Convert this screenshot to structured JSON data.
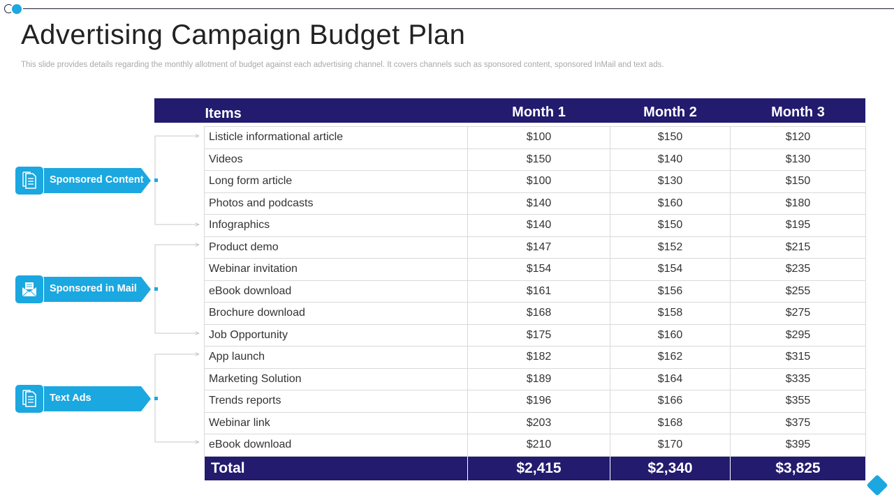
{
  "title": "Advertising Campaign Budget Plan",
  "subtitle": "This slide provides details regarding the monthly allotment of budget against each advertising channel. It covers channels such as sponsored content, sponsored InMail and text ads.",
  "columns": [
    "Items",
    "Month 1",
    "Month 2",
    "Month 3"
  ],
  "rows": [
    {
      "item": "Listicle informational article",
      "m1": "$100",
      "m2": "$150",
      "m3": "$120"
    },
    {
      "item": "Videos",
      "m1": "$150",
      "m2": "$140",
      "m3": "$130"
    },
    {
      "item": "Long form article",
      "m1": "$100",
      "m2": "$130",
      "m3": "$150"
    },
    {
      "item": "Photos and podcasts",
      "m1": "$140",
      "m2": "$160",
      "m3": "$180"
    },
    {
      "item": "Infographics",
      "m1": "$140",
      "m2": "$150",
      "m3": "$195"
    },
    {
      "item": "Product demo",
      "m1": "$147",
      "m2": "$152",
      "m3": "$215"
    },
    {
      "item": "Webinar invitation",
      "m1": "$154",
      "m2": "$154",
      "m3": "$235"
    },
    {
      "item": "eBook download",
      "m1": "$161",
      "m2": "$156",
      "m3": "$255"
    },
    {
      "item": "Brochure download",
      "m1": "$168",
      "m2": "$158",
      "m3": "$275"
    },
    {
      "item": "Job Opportunity",
      "m1": "$175",
      "m2": "$160",
      "m3": "$295"
    },
    {
      "item": "App launch",
      "m1": "$182",
      "m2": "$162",
      "m3": "$315"
    },
    {
      "item": "Marketing Solution",
      "m1": "$189",
      "m2": "$164",
      "m3": "$335"
    },
    {
      "item": "Trends reports",
      "m1": "$196",
      "m2": "$166",
      "m3": "$355"
    },
    {
      "item": "Webinar link",
      "m1": "$203",
      "m2": "$168",
      "m3": "$375"
    },
    {
      "item": "eBook download",
      "m1": "$210",
      "m2": "$170",
      "m3": "$395"
    }
  ],
  "total": {
    "label": "Total",
    "m1": "$2,415",
    "m2": "$2,340",
    "m3": "$3,825"
  },
  "categories": [
    {
      "label": "Sponsored Content",
      "icon": "document-icon"
    },
    {
      "label": "Sponsored in Mail",
      "icon": "envelope-icon"
    },
    {
      "label": "Text Ads",
      "icon": "document-icon"
    }
  ],
  "colors": {
    "header": "#221b6e",
    "accent": "#1ba7e0"
  }
}
